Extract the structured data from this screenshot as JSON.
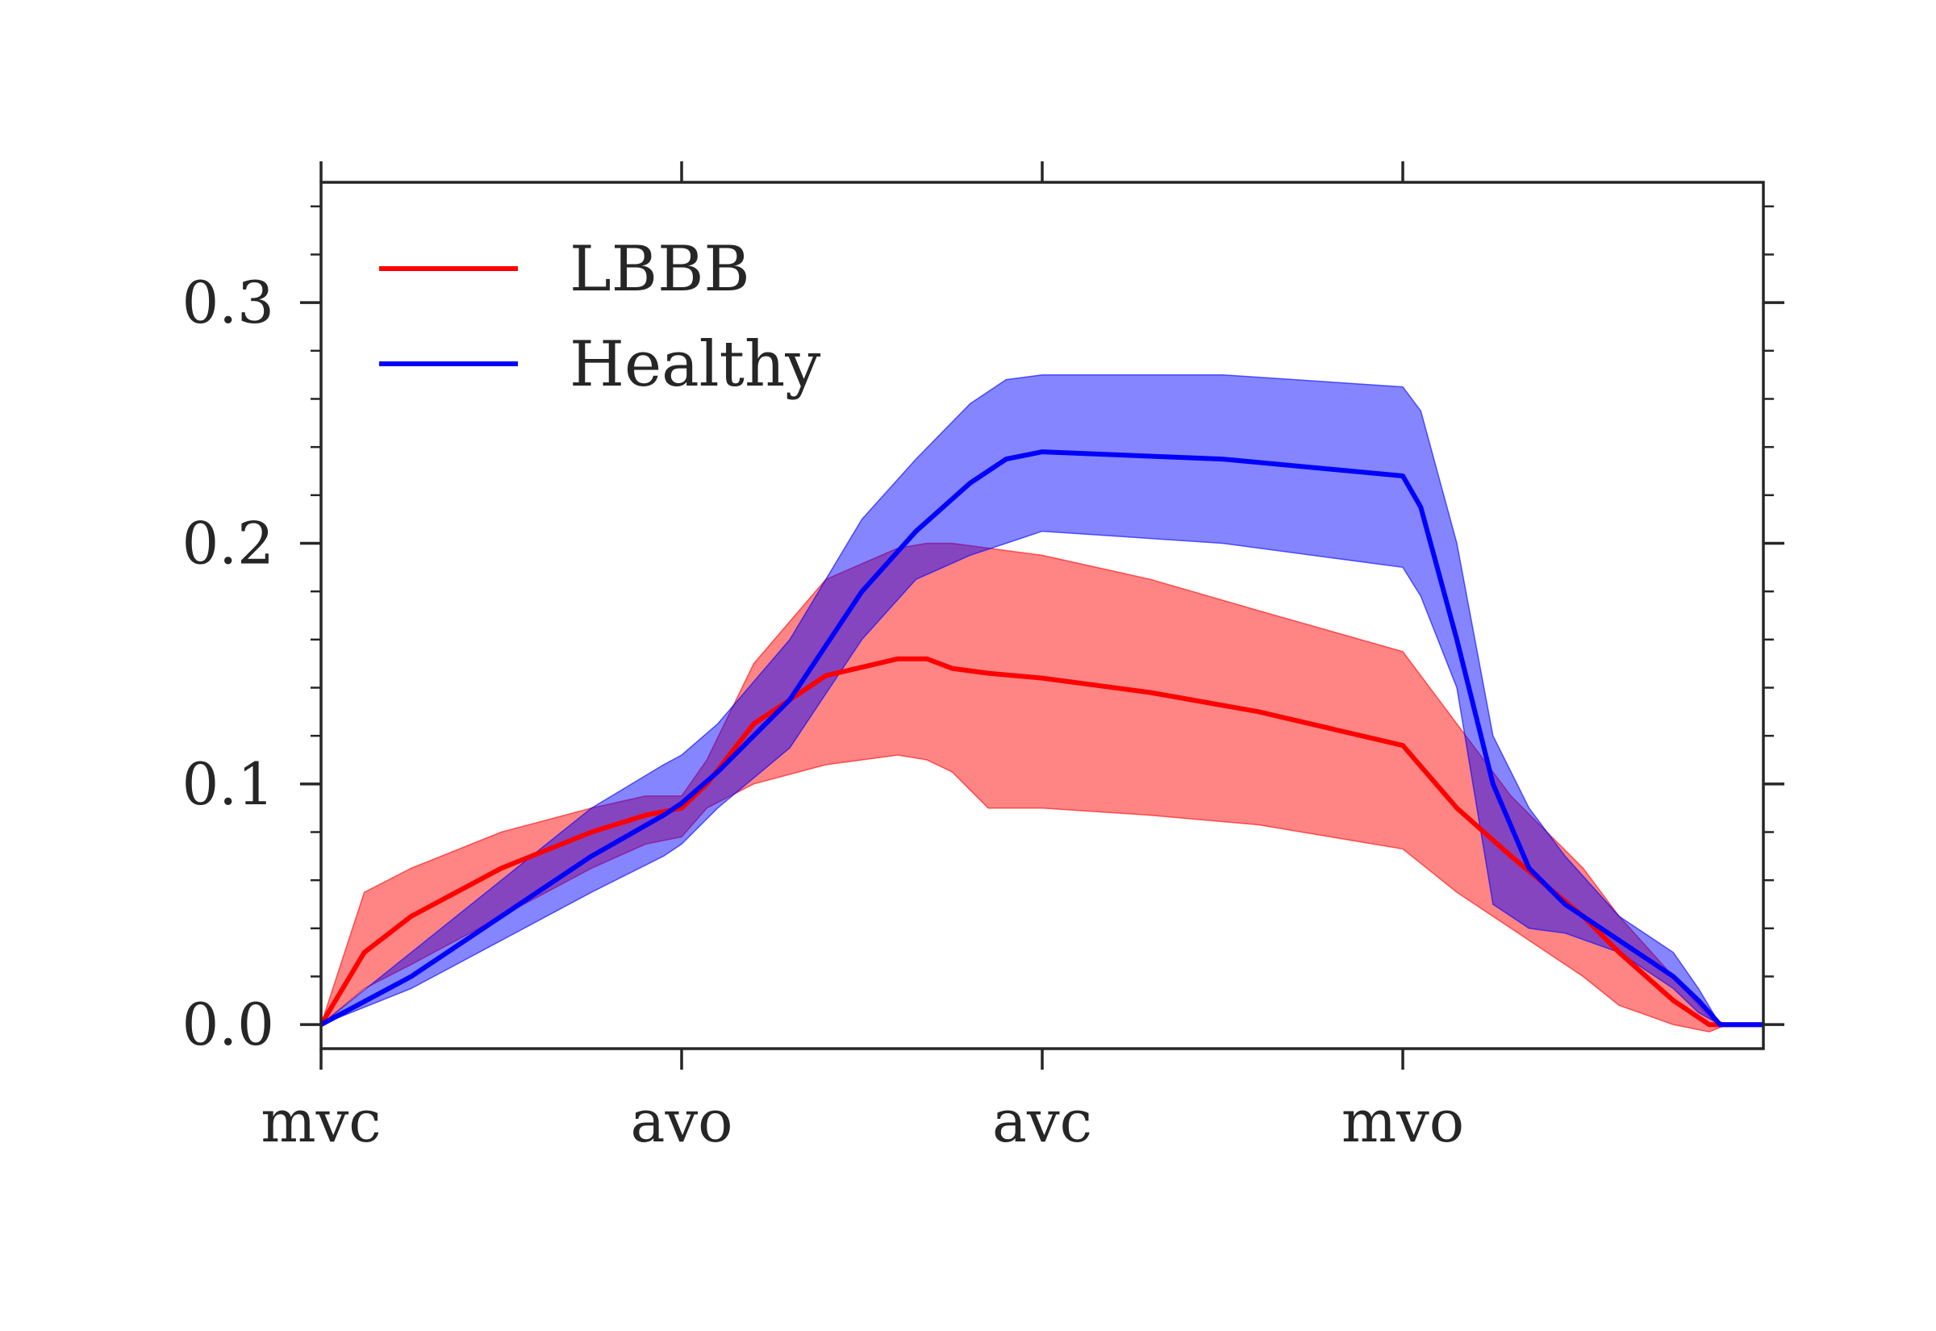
{
  "chart_data": {
    "type": "line",
    "title": "",
    "xlabel": "",
    "ylabel": "",
    "xlim": [
      0,
      4
    ],
    "ylim": [
      -0.01,
      0.35
    ],
    "x_tick_values": [
      0,
      1,
      2,
      3
    ],
    "x_tick_labels": [
      "mvc",
      "avo",
      "avc",
      "mvo"
    ],
    "y_tick_values": [
      0.0,
      0.1,
      0.2,
      0.3
    ],
    "y_tick_labels": [
      "0.0",
      "0.1",
      "0.2",
      "0.3"
    ],
    "grid": false,
    "legend_position": "top-left",
    "series": [
      {
        "name": "LBBB",
        "color": "#ff0000",
        "band_color": "#ff0000",
        "x": [
          0,
          0.12,
          0.25,
          0.5,
          0.75,
          0.9,
          1.0,
          1.07,
          1.2,
          1.4,
          1.6,
          1.68,
          1.75,
          1.85,
          2.0,
          2.3,
          2.6,
          3.0,
          3.15,
          3.3,
          3.5,
          3.6,
          3.75,
          3.85,
          3.9,
          4.0
        ],
        "values": [
          0.0,
          0.03,
          0.045,
          0.065,
          0.08,
          0.087,
          0.09,
          0.1,
          0.125,
          0.145,
          0.152,
          0.152,
          0.148,
          0.146,
          0.144,
          0.138,
          0.13,
          0.116,
          0.09,
          0.07,
          0.045,
          0.03,
          0.01,
          0.0,
          0.0,
          0.0
        ],
        "lower": [
          0.0,
          0.015,
          0.025,
          0.045,
          0.065,
          0.075,
          0.078,
          0.09,
          0.1,
          0.108,
          0.112,
          0.11,
          0.105,
          0.09,
          0.09,
          0.087,
          0.083,
          0.073,
          0.055,
          0.04,
          0.02,
          0.008,
          0.0,
          -0.003,
          0.0,
          0.0
        ],
        "upper": [
          0.0,
          0.055,
          0.065,
          0.08,
          0.09,
          0.095,
          0.095,
          0.11,
          0.15,
          0.185,
          0.198,
          0.2,
          0.2,
          0.198,
          0.195,
          0.185,
          0.172,
          0.155,
          0.125,
          0.095,
          0.065,
          0.045,
          0.02,
          0.003,
          0.0,
          0.0
        ]
      },
      {
        "name": "Healthy",
        "color": "#0000ff",
        "band_color": "#0000ff",
        "x": [
          0,
          0.25,
          0.5,
          0.75,
          0.95,
          1.0,
          1.1,
          1.3,
          1.5,
          1.65,
          1.8,
          1.9,
          2.0,
          2.5,
          3.0,
          3.05,
          3.15,
          3.25,
          3.35,
          3.45,
          3.6,
          3.75,
          3.82,
          3.88,
          3.92,
          4.0
        ],
        "values": [
          0.0,
          0.02,
          0.045,
          0.07,
          0.087,
          0.092,
          0.105,
          0.135,
          0.18,
          0.205,
          0.225,
          0.235,
          0.238,
          0.235,
          0.228,
          0.215,
          0.16,
          0.1,
          0.065,
          0.05,
          0.035,
          0.02,
          0.01,
          0.0,
          0.0,
          0.0
        ],
        "lower": [
          0.0,
          0.015,
          0.035,
          0.055,
          0.07,
          0.075,
          0.09,
          0.115,
          0.16,
          0.185,
          0.195,
          0.2,
          0.205,
          0.2,
          0.19,
          0.178,
          0.14,
          0.05,
          0.04,
          0.038,
          0.03,
          0.015,
          0.005,
          0.0,
          0.0,
          0.0
        ],
        "upper": [
          0.0,
          0.03,
          0.06,
          0.09,
          0.108,
          0.112,
          0.125,
          0.16,
          0.21,
          0.235,
          0.258,
          0.268,
          0.27,
          0.27,
          0.265,
          0.255,
          0.2,
          0.12,
          0.09,
          0.07,
          0.045,
          0.03,
          0.015,
          0.0,
          0.0,
          0.0
        ]
      }
    ]
  }
}
